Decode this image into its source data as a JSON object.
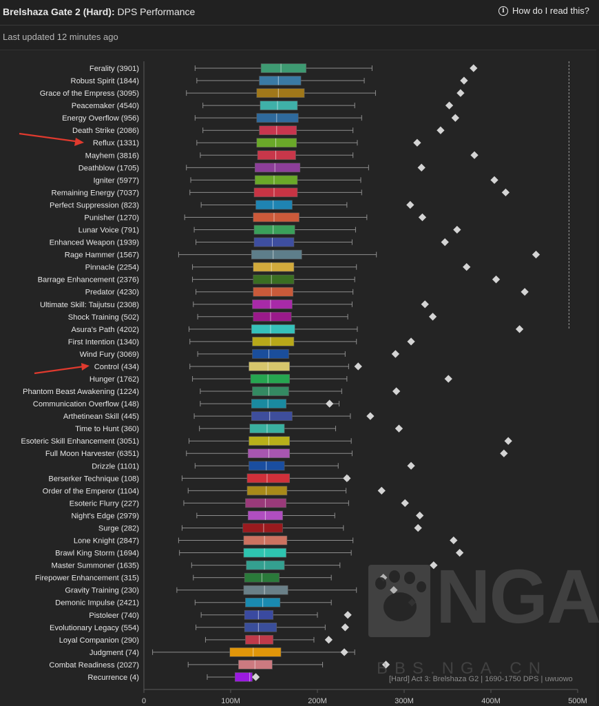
{
  "header": {
    "title_bold": "Brelshaza Gate 2 (Hard):",
    "title_rest": "DPS Performance",
    "help_label": "How do I read this?",
    "last_updated": "Last updated 12 minutes ago"
  },
  "watermark": {
    "text": "NGA",
    "url": "BBS.NGA.CN"
  },
  "caption": "[Hard] Act 3: Brelshaza G2 | 1690-1750 DPS | uwuowo",
  "chart_data": {
    "type": "box",
    "x_axis": {
      "ticks": [
        0,
        100,
        200,
        300,
        400,
        500
      ],
      "tick_labels": [
        "0",
        "100M",
        "200M",
        "300M",
        "400M",
        "500M"
      ],
      "xlim": [
        0,
        500
      ]
    },
    "reference_line": 490,
    "highlighted": [
      "Reflux (1331)",
      "Control (434)"
    ],
    "series": [
      {
        "label": "Ferality (3901)",
        "min": 59,
        "q1": 135,
        "median": 158,
        "q3": 187,
        "max": 263,
        "outlier": 380,
        "color": "#3e9a72"
      },
      {
        "label": "Robust Spirit (1844)",
        "min": 61,
        "q1": 133,
        "median": 155,
        "q3": 181,
        "max": 254,
        "outlier": 369,
        "color": "#3a7aa4"
      },
      {
        "label": "Grace of the Empress (3095)",
        "min": 49,
        "q1": 130,
        "median": 155,
        "q3": 185,
        "max": 267,
        "outlier": 365,
        "color": "#a0781a"
      },
      {
        "label": "Peacemaker (4540)",
        "min": 68,
        "q1": 134,
        "median": 154,
        "q3": 177,
        "max": 243,
        "outlier": 352,
        "color": "#3fb0a8"
      },
      {
        "label": "Energy Overflow (956)",
        "min": 59,
        "q1": 130,
        "median": 153,
        "q3": 178,
        "max": 251,
        "outlier": 359,
        "color": "#2f6a9c"
      },
      {
        "label": "Death Strike (2086)",
        "min": 68,
        "q1": 133,
        "median": 153,
        "q3": 176,
        "max": 241,
        "outlier": 342,
        "color": "#c8364e"
      },
      {
        "label": "Reflux (1331)",
        "min": 61,
        "q1": 130,
        "median": 152,
        "q3": 176,
        "max": 246,
        "outlier": 315,
        "color": "#6aa829"
      },
      {
        "label": "Mayhem (3816)",
        "min": 65,
        "q1": 131,
        "median": 152,
        "q3": 175,
        "max": 241,
        "outlier": 381,
        "color": "#c8374a"
      },
      {
        "label": "Deathblow (1705)",
        "min": 49,
        "q1": 128,
        "median": 151,
        "q3": 180,
        "max": 259,
        "outlier": 320,
        "color": "#8c3e99"
      },
      {
        "label": "Igniter (5977)",
        "min": 54,
        "q1": 128,
        "median": 150,
        "q3": 177,
        "max": 250,
        "outlier": 404,
        "color": "#6aa829"
      },
      {
        "label": "Remaining Energy (7037)",
        "min": 53,
        "q1": 127,
        "median": 150,
        "q3": 177,
        "max": 251,
        "outlier": 417,
        "color": "#c83444"
      },
      {
        "label": "Perfect Suppression (823)",
        "min": 66,
        "q1": 129,
        "median": 149,
        "q3": 171,
        "max": 234,
        "outlier": 307,
        "color": "#1f84b2"
      },
      {
        "label": "Punisher (1270)",
        "min": 47,
        "q1": 126,
        "median": 150,
        "q3": 179,
        "max": 257,
        "outlier": 321,
        "color": "#cc5a3a"
      },
      {
        "label": "Lunar Voice (791)",
        "min": 58,
        "q1": 127,
        "median": 149,
        "q3": 174,
        "max": 244,
        "outlier": 361,
        "color": "#3aa05a"
      },
      {
        "label": "Enhanced Weapon (1939)",
        "min": 60,
        "q1": 127,
        "median": 148,
        "q3": 173,
        "max": 240,
        "outlier": 347,
        "color": "#3e4ea0"
      },
      {
        "label": "Rage Hammer (1567)",
        "min": 40,
        "q1": 124,
        "median": 149,
        "q3": 182,
        "max": 268,
        "outlier": 452,
        "color": "#5e7e8a"
      },
      {
        "label": "Pinnacle (2254)",
        "min": 56,
        "q1": 126,
        "median": 147,
        "q3": 173,
        "max": 245,
        "outlier": 372,
        "color": "#d2aa3c"
      },
      {
        "label": "Barrage Enhancement (2376)",
        "min": 56,
        "q1": 126,
        "median": 147,
        "q3": 173,
        "max": 243,
        "outlier": 406,
        "color": "#3a6e22"
      },
      {
        "label": "Predator (4230)",
        "min": 60,
        "q1": 126,
        "median": 147,
        "q3": 172,
        "max": 241,
        "outlier": 439,
        "color": "#c85a3a"
      },
      {
        "label": "Ultimate Skill: Taijutsu (2308)",
        "min": 57,
        "q1": 125,
        "median": 146,
        "q3": 171,
        "max": 240,
        "outlier": 324,
        "color": "#a82aa8"
      },
      {
        "label": "Shock Training (502)",
        "min": 62,
        "q1": 126,
        "median": 146,
        "q3": 170,
        "max": 235,
        "outlier": 333,
        "color": "#9a1a8a"
      },
      {
        "label": "Asura's Path (4202)",
        "min": 52,
        "q1": 124,
        "median": 146,
        "q3": 174,
        "max": 246,
        "outlier": 433,
        "color": "#36c0ba"
      },
      {
        "label": "First Intention (1340)",
        "min": 53,
        "q1": 125,
        "median": 146,
        "q3": 173,
        "max": 245,
        "outlier": 308,
        "color": "#b8a81a"
      },
      {
        "label": "Wind Fury (3069)",
        "min": 62,
        "q1": 125,
        "median": 144,
        "q3": 167,
        "max": 232,
        "outlier": 290,
        "color": "#1a4e9c"
      },
      {
        "label": "Control (434)",
        "min": 53,
        "q1": 121,
        "median": 143,
        "q3": 168,
        "max": 236,
        "outlier": 247,
        "color": "#d6c66c"
      },
      {
        "label": "Hunger (1762)",
        "min": 56,
        "q1": 123,
        "median": 143,
        "q3": 168,
        "max": 234,
        "outlier": 351,
        "color": "#26a650"
      },
      {
        "label": "Phantom Beast Awakening (1224)",
        "min": 65,
        "q1": 125,
        "median": 144,
        "q3": 167,
        "max": 228,
        "outlier": 291,
        "color": "#348a62"
      },
      {
        "label": "Communication Overflow (148)",
        "min": 65,
        "q1": 124,
        "median": 143,
        "q3": 164,
        "max": 225,
        "outlier": 214,
        "color": "#1a8aa0"
      },
      {
        "label": "Arthetinean Skill (445)",
        "min": 58,
        "q1": 124,
        "median": 145,
        "q3": 171,
        "max": 238,
        "outlier": 261,
        "color": "#3e4e9c"
      },
      {
        "label": "Time to Hunt (360)",
        "min": 64,
        "q1": 122,
        "median": 142,
        "q3": 162,
        "max": 221,
        "outlier": 294,
        "color": "#3ab0a0"
      },
      {
        "label": "Esoteric Skill Enhancement (3051)",
        "min": 52,
        "q1": 121,
        "median": 144,
        "q3": 168,
        "max": 239,
        "outlier": 420,
        "color": "#b8b01a"
      },
      {
        "label": "Full Moon Harvester (6351)",
        "min": 49,
        "q1": 120,
        "median": 144,
        "q3": 168,
        "max": 240,
        "outlier": 415,
        "color": "#a856b0"
      },
      {
        "label": "Drizzle (1101)",
        "min": 59,
        "q1": 121,
        "median": 141,
        "q3": 162,
        "max": 224,
        "outlier": 308,
        "color": "#1a4ea0"
      },
      {
        "label": "Berserker Technique (108)",
        "min": 44,
        "q1": 119,
        "median": 142,
        "q3": 168,
        "max": 236,
        "outlier": 234,
        "color": "#d0303a"
      },
      {
        "label": "Order of the Emperor (1104)",
        "min": 51,
        "q1": 119,
        "median": 141,
        "q3": 165,
        "max": 233,
        "outlier": 274,
        "color": "#a88a1a"
      },
      {
        "label": "Esoteric Flurry (227)",
        "min": 46,
        "q1": 117,
        "median": 140,
        "q3": 164,
        "max": 236,
        "outlier": 301,
        "color": "#9a3a7a"
      },
      {
        "label": "Night's Edge (2979)",
        "min": 61,
        "q1": 120,
        "median": 140,
        "q3": 160,
        "max": 220,
        "outlier": 318,
        "color": "#b04ec0"
      },
      {
        "label": "Surge (282)",
        "min": 44,
        "q1": 114,
        "median": 138,
        "q3": 160,
        "max": 230,
        "outlier": 316,
        "color": "#9a1a1e"
      },
      {
        "label": "Lone Knight (2847)",
        "min": 40,
        "q1": 115,
        "median": 139,
        "q3": 165,
        "max": 241,
        "outlier": 357,
        "color": "#cc7260"
      },
      {
        "label": "Brawl King Storm (1694)",
        "min": 41,
        "q1": 115,
        "median": 139,
        "q3": 164,
        "max": 239,
        "outlier": 364,
        "color": "#2ec4b0"
      },
      {
        "label": "Master Summoner (1635)",
        "min": 55,
        "q1": 118,
        "median": 139,
        "q3": 162,
        "max": 226,
        "outlier": 334,
        "color": "#34a090"
      },
      {
        "label": "Firepower Enhancement (315)",
        "min": 57,
        "q1": 116,
        "median": 136,
        "q3": 156,
        "max": 216,
        "outlier": 276,
        "color": "#2a7a3a"
      },
      {
        "label": "Gravity Training (230)",
        "min": 38,
        "q1": 115,
        "median": 139,
        "q3": 166,
        "max": 245,
        "outlier": 288,
        "color": "#6a8088"
      },
      {
        "label": "Demonic Impulse (2421)",
        "min": 59,
        "q1": 117,
        "median": 137,
        "q3": 157,
        "max": 216,
        "outlier": 309,
        "color": "#1a8ab0"
      },
      {
        "label": "Pistoleer (740)",
        "min": 66,
        "q1": 116,
        "median": 132,
        "q3": 149,
        "max": 200,
        "outlier": 235,
        "color": "#3a4aa0"
      },
      {
        "label": "Evolutionary Legacy (554)",
        "min": 60,
        "q1": 116,
        "median": 132,
        "q3": 153,
        "max": 209,
        "outlier": 232,
        "color": "#3a4e9a"
      },
      {
        "label": "Loyal Companion (290)",
        "min": 71,
        "q1": 117,
        "median": 133,
        "q3": 149,
        "max": 196,
        "outlier": 213,
        "color": "#c03a4a"
      },
      {
        "label": "Judgment (74)",
        "min": 10,
        "q1": 99,
        "median": 126,
        "q3": 158,
        "max": 243,
        "outlier": 231,
        "color": "#e0960a"
      },
      {
        "label": "Combat Readiness (2027)",
        "min": 51,
        "q1": 109,
        "median": 128,
        "q3": 148,
        "max": 206,
        "outlier": 279,
        "color": "#cc7a80"
      },
      {
        "label": "Recurrence (4)",
        "min": 73,
        "q1": 105,
        "median": 122,
        "q3": 125,
        "max": 125,
        "outlier": 129,
        "color": "#9a1ae0"
      }
    ]
  }
}
